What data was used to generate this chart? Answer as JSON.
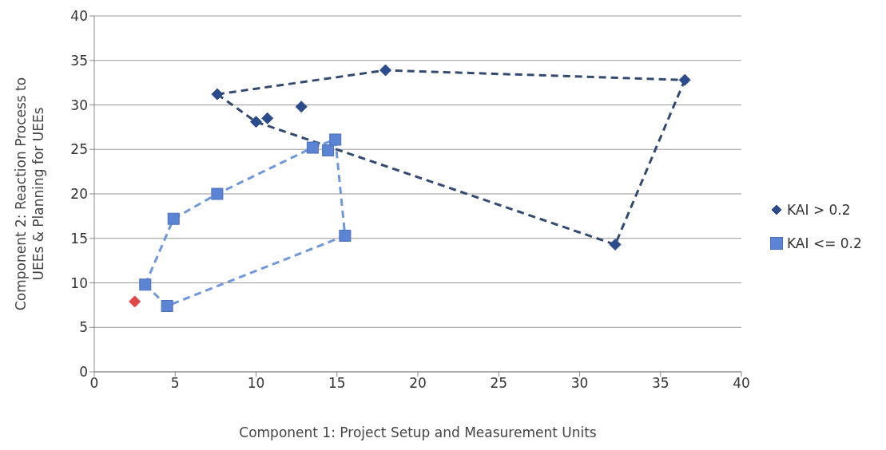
{
  "chart_data": {
    "type": "scatter",
    "xlabel": "Component 1: Project Setup and Measurement Units",
    "ylabel": "Component 2: Reaction Process to UEEs & Planning for UEEs",
    "xlim": [
      0,
      40
    ],
    "xticks": [
      0,
      5,
      10,
      15,
      20,
      25,
      30,
      35,
      40
    ],
    "ylim": [
      0,
      40
    ],
    "yticks": [
      0,
      5,
      10,
      15,
      20,
      25,
      30,
      35,
      40
    ],
    "grid": "y",
    "legend": "right",
    "series": [
      {
        "name": "KAI > 0.2",
        "color": "#2b4b8c",
        "marker": "diamond",
        "x": [
          7.6,
          18,
          36.5,
          32.2,
          10,
          10.7,
          12.8
        ],
        "values": [
          31.2,
          33.9,
          32.8,
          14.3,
          28.1,
          28.5,
          29.8
        ]
      },
      {
        "name": "KAI <= 0.2",
        "color": "#5b84d4",
        "marker": "square",
        "x": [
          3.15,
          4.5,
          4.9,
          7.6,
          13.5,
          14.45,
          14.9,
          15.5
        ],
        "values": [
          9.8,
          7.4,
          17.2,
          20,
          25.2,
          24.9,
          26.1,
          15.3
        ]
      },
      {
        "color": "#e04848",
        "marker": "diamond",
        "x": [
          2.5
        ],
        "values": [
          7.9
        ]
      },
      {
        "type": "line",
        "color": "#34496f",
        "marker": "none",
        "line_style": "dashed",
        "x": [
          7.6,
          18,
          36.5
        ],
        "values": [
          31.2,
          33.9,
          32.8
        ]
      },
      {
        "type": "line",
        "color": "#34496f",
        "marker": "none",
        "line_style": "dashed",
        "x": [
          7.6,
          10,
          32.2,
          36.5
        ],
        "values": [
          31.2,
          28.1,
          14.3,
          32.8
        ]
      },
      {
        "type": "line",
        "color": "#7097dc",
        "marker": "none",
        "line_style": "dashed",
        "x": [
          3.15,
          4.9,
          7.6,
          13.5,
          14.9,
          15.5
        ],
        "values": [
          9.8,
          17.2,
          20,
          25.2,
          26.1,
          15.3
        ]
      },
      {
        "type": "line",
        "color": "#7097dc",
        "marker": "none",
        "line_style": "dashed",
        "x": [
          3.15,
          4.5,
          15.5
        ],
        "values": [
          9.8,
          7.4,
          15.3
        ]
      }
    ]
  }
}
